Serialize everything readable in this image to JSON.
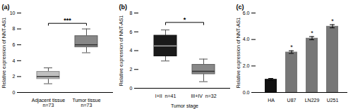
{
  "chart_data": [
    {
      "type": "box",
      "title": "(a)",
      "ylabel": "Relative expression of NNT-AS1",
      "categories": [
        "Adjacent tissue\nn=73",
        "Tumor tissue\nn=73"
      ],
      "median": [
        2.0,
        6.0
      ],
      "q1": [
        1.7,
        5.7
      ],
      "q3": [
        2.6,
        7.1
      ],
      "whislo": [
        1.1,
        5.0
      ],
      "whishi": [
        3.1,
        8.0
      ],
      "colors": [
        "#c0c0c0",
        "#888888"
      ],
      "ylim": [
        0,
        10
      ],
      "yticks": [
        0,
        2,
        4,
        6,
        8,
        10
      ],
      "significance": {
        "text": "***",
        "bracket_y": 8.7,
        "bracket_drop": 0.25
      }
    },
    {
      "type": "box",
      "title": "(b)",
      "ylabel": "Relative expression of NNT-AS1",
      "xlabel": "Tumor stage",
      "categories": [
        "I+II  n=41",
        "III+IV  n=32"
      ],
      "median": [
        4.5,
        1.8
      ],
      "q1": [
        3.4,
        1.5
      ],
      "q3": [
        5.6,
        2.5
      ],
      "whislo": [
        2.9,
        0.7
      ],
      "whishi": [
        6.2,
        3.1
      ],
      "colors": [
        "#1a1a1a",
        "#888888"
      ],
      "ylim": [
        0,
        8
      ],
      "yticks": [
        0,
        2,
        4,
        6,
        8
      ],
      "significance": {
        "text": "*",
        "bracket_y": 7.0,
        "bracket_drop": 0.25
      }
    },
    {
      "type": "bar",
      "title": "(c)",
      "ylabel": "Relative expression of NNT-AS1",
      "categories": [
        "HA",
        "U87",
        "LN229",
        "U251"
      ],
      "values": [
        1.0,
        3.05,
        4.1,
        5.0
      ],
      "errors": [
        0.06,
        0.1,
        0.12,
        0.12
      ],
      "colors": [
        "#111111",
        "#777777",
        "#777777",
        "#777777"
      ],
      "significance": [
        null,
        "*",
        "*",
        "*"
      ],
      "ylim": [
        0,
        6
      ],
      "yticks": [
        0,
        2,
        4,
        6
      ]
    }
  ]
}
